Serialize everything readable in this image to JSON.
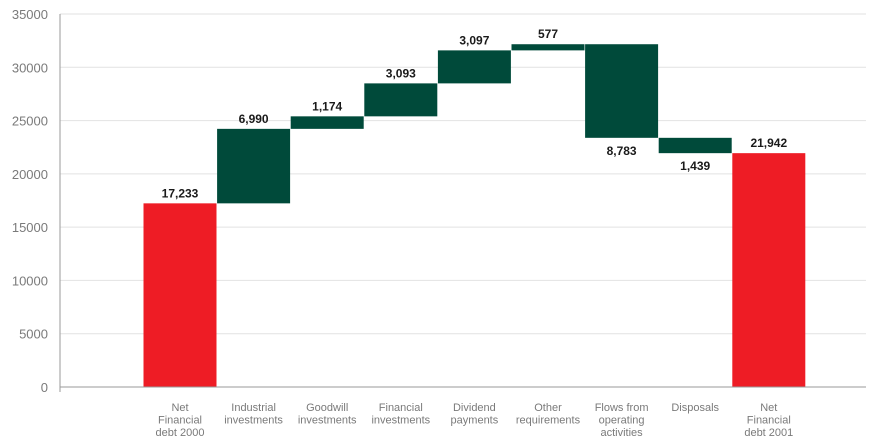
{
  "chart_data": {
    "type": "bar",
    "subtype": "waterfall",
    "categories": [
      "Net Financial debt 2000",
      "Industrial investments",
      "Goodwill investments",
      "Financial investments",
      "Dividend payments",
      "Other requirements",
      "Flows from operating activities",
      "Disposals",
      "Net Financial debt 2001"
    ],
    "category_lines": [
      [
        "Net",
        "Financial",
        "debt 2000"
      ],
      [
        "Industrial",
        "investments"
      ],
      [
        "Goodwill",
        "investments"
      ],
      [
        "Financial",
        "investments"
      ],
      [
        "Dividend",
        "payments"
      ],
      [
        "Other",
        "requirements"
      ],
      [
        "Flows from",
        "operating",
        "activities"
      ],
      [
        "Disposals"
      ],
      [
        "Net",
        "Financial",
        "debt 2001"
      ]
    ],
    "values": [
      17233,
      6990,
      1174,
      3093,
      3097,
      577,
      -8783,
      -1439,
      21942
    ],
    "value_labels": [
      "17,233",
      "6,990",
      "1,174",
      "3,093",
      "3,097",
      "577",
      "8,783",
      "1,439",
      "21,942"
    ],
    "bar_kind": [
      "total",
      "delta",
      "delta",
      "delta",
      "delta",
      "delta",
      "delta",
      "delta",
      "total"
    ],
    "title": "",
    "xlabel": "",
    "ylabel": "",
    "ylim": [
      0,
      35000
    ],
    "yticks": [
      0,
      5000,
      10000,
      15000,
      20000,
      25000,
      30000,
      35000
    ],
    "ytick_labels": [
      "0",
      "5000",
      "10000",
      "15000",
      "20000",
      "25000",
      "30000",
      "35000"
    ],
    "grid": true,
    "legend": "none",
    "colors": {
      "total": "#ee1c25",
      "delta": "#004a3a"
    }
  }
}
